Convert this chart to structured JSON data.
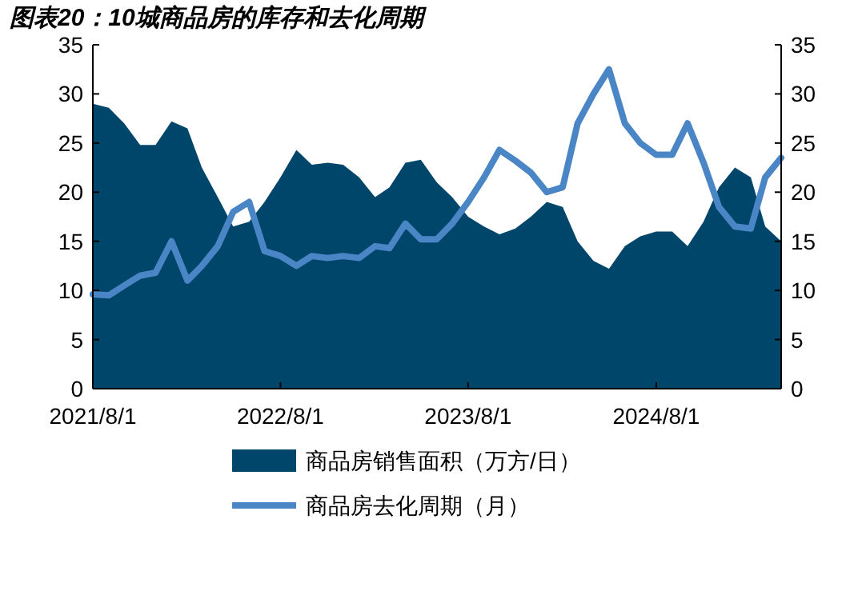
{
  "chart_data": {
    "type": "area",
    "title": "图表20：10城商品房的库存和去化周期",
    "x": [
      "2021-08-01",
      "2021-09-01",
      "2021-10-01",
      "2021-11-01",
      "2021-12-01",
      "2022-01-01",
      "2022-02-01",
      "2022-03-01",
      "2022-04-01",
      "2022-05-01",
      "2022-06-01",
      "2022-07-01",
      "2022-08-01",
      "2022-09-01",
      "2022-10-01",
      "2022-11-01",
      "2022-12-01",
      "2023-01-01",
      "2023-02-01",
      "2023-03-01",
      "2023-04-01",
      "2023-05-01",
      "2023-06-01",
      "2023-07-01",
      "2023-08-01",
      "2023-09-01",
      "2023-10-01",
      "2023-11-01",
      "2023-12-01",
      "2024-01-01",
      "2024-02-01",
      "2024-03-01",
      "2024-04-01",
      "2024-05-01",
      "2024-06-01",
      "2024-07-01",
      "2024-08-01",
      "2024-09-01",
      "2024-10-01",
      "2024-11-01",
      "2024-12-01",
      "2025-01-01",
      "2025-02-01",
      "2025-03-01",
      "2025-04-01"
    ],
    "series": [
      {
        "name": "商品房销售面积（万方/日）",
        "type": "area",
        "color": "#00466b",
        "values": [
          29,
          28.6,
          27,
          24.8,
          24.8,
          27.2,
          26.5,
          22.5,
          19.5,
          16.5,
          17,
          19,
          21.5,
          24.3,
          22.8,
          23,
          22.8,
          21.5,
          19.5,
          20.5,
          23,
          23.3,
          21,
          19.5,
          17.5,
          16.5,
          15.7,
          16.3,
          17.5,
          19,
          18.5,
          15,
          13,
          12.2,
          14.5,
          15.5,
          16,
          16,
          14.5,
          17,
          20.5,
          22.5,
          21.5,
          16.5,
          15
        ]
      },
      {
        "name": "商品房去化周期（月）",
        "type": "line",
        "axis": "y2",
        "color": "#4a86c5",
        "values": [
          9.6,
          9.5,
          10.5,
          11.5,
          11.8,
          15,
          11,
          12.5,
          14.5,
          18,
          19,
          14,
          13.5,
          12.5,
          13.5,
          13.3,
          13.5,
          13.3,
          14.5,
          14.3,
          16.8,
          15.2,
          15.2,
          16.8,
          19,
          21.5,
          24.3,
          23.2,
          22,
          20,
          20.5,
          27,
          30,
          32.5,
          27,
          25,
          23.8,
          23.8,
          27,
          23,
          18.5,
          16.5,
          16.3,
          21.5,
          23.5
        ]
      }
    ],
    "xlim": [
      "2021-08-01",
      "2025-04-01"
    ],
    "xticks": [
      {
        "value": "2021-08-01",
        "label": "2021/8/1"
      },
      {
        "value": "2022-08-01",
        "label": "2022/8/1"
      },
      {
        "value": "2023-08-01",
        "label": "2023/8/1"
      },
      {
        "value": "2024-08-01",
        "label": "2024/8/1"
      }
    ],
    "ylim": [
      0,
      35
    ],
    "yticks": [
      0,
      5,
      10,
      15,
      20,
      25,
      30,
      35
    ],
    "y2lim": [
      0,
      35
    ],
    "y2ticks": [
      0,
      5,
      10,
      15,
      20,
      25,
      30,
      35
    ],
    "legend": "bottom",
    "grid": false,
    "marker": "none",
    "line_style": "solid"
  }
}
